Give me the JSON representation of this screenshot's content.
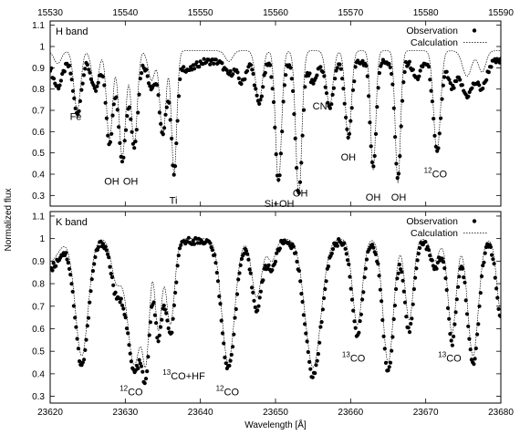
{
  "chart_data": [
    {
      "type": "scatter",
      "panel_label": "H band",
      "xlim": [
        15530,
        15590
      ],
      "ylim": [
        0.25,
        1.12
      ],
      "x_ticks": [
        15530,
        15540,
        15550,
        15560,
        15570,
        15580,
        15590
      ],
      "x_tick_position": "top",
      "y_ticks": [
        0.3,
        0.4,
        0.5,
        0.6,
        0.7,
        0.8,
        0.9,
        1.0,
        1.1
      ],
      "y_tick_labels": [
        "0.3",
        "0.4",
        "0.5",
        "0.6",
        "0.7",
        "0.8",
        "0.9",
        "1",
        "1.1"
      ],
      "grid": false,
      "legend_position": "top-right",
      "series": [
        {
          "name": "Observation",
          "style": "points",
          "color": "#000000",
          "profile": {
            "continuum": 0.93,
            "lines": [
              {
                "x": 15531.0,
                "depth": 0.12,
                "width": 0.6
              },
              {
                "x": 15533.6,
                "depth": 0.25,
                "width": 0.5
              },
              {
                "x": 15536.0,
                "depth": 0.14,
                "width": 0.5
              },
              {
                "x": 15537.9,
                "depth": 0.38,
                "width": 0.45
              },
              {
                "x": 15539.6,
                "depth": 0.46,
                "width": 0.5
              },
              {
                "x": 15541.2,
                "depth": 0.4,
                "width": 0.45
              },
              {
                "x": 15543.5,
                "depth": 0.12,
                "width": 0.5
              },
              {
                "x": 15545.0,
                "depth": 0.35,
                "width": 0.45
              },
              {
                "x": 15546.5,
                "depth": 0.52,
                "width": 0.4
              },
              {
                "x": 15548.5,
                "depth": 0.04,
                "width": 0.8
              },
              {
                "x": 15553.8,
                "depth": 0.06,
                "width": 0.6
              },
              {
                "x": 15555.5,
                "depth": 0.1,
                "width": 0.5
              },
              {
                "x": 15557.8,
                "depth": 0.2,
                "width": 0.5
              },
              {
                "x": 15560.4,
                "depth": 0.56,
                "width": 0.45
              },
              {
                "x": 15563.1,
                "depth": 0.63,
                "width": 0.45
              },
              {
                "x": 15565.0,
                "depth": 0.1,
                "width": 0.5
              },
              {
                "x": 15567.2,
                "depth": 0.22,
                "width": 0.5
              },
              {
                "x": 15569.7,
                "depth": 0.36,
                "width": 0.45
              },
              {
                "x": 15573.0,
                "depth": 0.5,
                "width": 0.4
              },
              {
                "x": 15576.3,
                "depth": 0.55,
                "width": 0.4
              },
              {
                "x": 15578.8,
                "depth": 0.08,
                "width": 0.5
              },
              {
                "x": 15581.5,
                "depth": 0.43,
                "width": 0.5
              },
              {
                "x": 15583.5,
                "depth": 0.12,
                "width": 0.5
              },
              {
                "x": 15585.5,
                "depth": 0.16,
                "width": 0.8
              },
              {
                "x": 15587.5,
                "depth": 0.12,
                "width": 0.6
              }
            ],
            "sampling": 0.16
          }
        },
        {
          "name": "Calculation",
          "style": "dotted-line",
          "color": "#000000",
          "profile": {
            "continuum": 0.98,
            "lines": [
              {
                "x": 15531.0,
                "depth": 0.06,
                "width": 0.5
              },
              {
                "x": 15533.6,
                "depth": 0.28,
                "width": 0.45
              },
              {
                "x": 15536.0,
                "depth": 0.18,
                "width": 0.45
              },
              {
                "x": 15537.9,
                "depth": 0.42,
                "width": 0.4
              },
              {
                "x": 15539.6,
                "depth": 0.5,
                "width": 0.45
              },
              {
                "x": 15541.2,
                "depth": 0.44,
                "width": 0.4
              },
              {
                "x": 15543.5,
                "depth": 0.14,
                "width": 0.45
              },
              {
                "x": 15545.0,
                "depth": 0.4,
                "width": 0.4
              },
              {
                "x": 15546.5,
                "depth": 0.58,
                "width": 0.35
              },
              {
                "x": 15553.8,
                "depth": 0.05,
                "width": 0.5
              },
              {
                "x": 15557.8,
                "depth": 0.24,
                "width": 0.45
              },
              {
                "x": 15560.4,
                "depth": 0.62,
                "width": 0.4
              },
              {
                "x": 15563.1,
                "depth": 0.68,
                "width": 0.4
              },
              {
                "x": 15567.2,
                "depth": 0.26,
                "width": 0.45
              },
              {
                "x": 15569.7,
                "depth": 0.42,
                "width": 0.4
              },
              {
                "x": 15573.0,
                "depth": 0.56,
                "width": 0.35
              },
              {
                "x": 15576.3,
                "depth": 0.62,
                "width": 0.35
              },
              {
                "x": 15581.5,
                "depth": 0.48,
                "width": 0.45
              },
              {
                "x": 15585.5,
                "depth": 0.12,
                "width": 0.6
              },
              {
                "x": 15587.5,
                "depth": 0.1,
                "width": 0.5
              }
            ],
            "sampling": 0.06
          }
        }
      ],
      "annotations": [
        {
          "text": "Fe",
          "x": 15533.4,
          "y": 0.655
        },
        {
          "text": "OH",
          "x": 15538.2,
          "y": 0.35
        },
        {
          "text": "OH",
          "x": 15540.7,
          "y": 0.35
        },
        {
          "text": "Ti",
          "x": 15546.4,
          "y": 0.26
        },
        {
          "text": "Si+OH",
          "x": 15560.5,
          "y": 0.245
        },
        {
          "text": "OH",
          "x": 15563.3,
          "y": 0.295
        },
        {
          "text": "CN",
          "x": 15565.9,
          "y": 0.705
        },
        {
          "text": "OH",
          "x": 15569.7,
          "y": 0.465
        },
        {
          "text": "OH",
          "x": 15573.0,
          "y": 0.275
        },
        {
          "text": "OH",
          "x": 15576.4,
          "y": 0.275
        },
        {
          "text": "CO",
          "sup": "12",
          "x": 15581.3,
          "y": 0.385
        }
      ]
    },
    {
      "type": "scatter",
      "panel_label": "K band",
      "xlim": [
        23620,
        23680
      ],
      "ylim": [
        0.27,
        1.12
      ],
      "x_ticks": [
        23620,
        23630,
        23640,
        23650,
        23660,
        23670,
        23680
      ],
      "x_tick_position": "bottom",
      "xlabel": "Wavelength [Å]",
      "y_ticks": [
        0.3,
        0.4,
        0.5,
        0.6,
        0.7,
        0.8,
        0.9,
        1.0,
        1.1
      ],
      "y_tick_labels": [
        "0.3",
        "0.4",
        "0.5",
        "0.6",
        "0.7",
        "0.8",
        "0.9",
        "1",
        "1.1"
      ],
      "grid": false,
      "legend_position": "top-right",
      "series": [
        {
          "name": "Observation",
          "style": "points",
          "color": "#000000",
          "profile": {
            "continuum": 0.99,
            "lines": [
              {
                "x": 23620.0,
                "depth": 0.12,
                "width": 1.2
              },
              {
                "x": 23624.2,
                "depth": 0.55,
                "width": 0.9
              },
              {
                "x": 23628.8,
                "depth": 0.22,
                "width": 0.7
              },
              {
                "x": 23631.2,
                "depth": 0.58,
                "width": 1.0
              },
              {
                "x": 23632.8,
                "depth": 0.45,
                "width": 0.5
              },
              {
                "x": 23634.4,
                "depth": 0.42,
                "width": 0.5
              },
              {
                "x": 23636.0,
                "depth": 0.42,
                "width": 0.6
              },
              {
                "x": 23643.7,
                "depth": 0.57,
                "width": 0.9
              },
              {
                "x": 23647.5,
                "depth": 0.3,
                "width": 0.7
              },
              {
                "x": 23649.5,
                "depth": 0.12,
                "width": 0.6
              },
              {
                "x": 23655.0,
                "depth": 0.6,
                "width": 1.1
              },
              {
                "x": 23660.9,
                "depth": 0.42,
                "width": 0.7
              },
              {
                "x": 23665.0,
                "depth": 0.58,
                "width": 0.75
              },
              {
                "x": 23667.8,
                "depth": 0.4,
                "width": 0.6
              },
              {
                "x": 23671.2,
                "depth": 0.12,
                "width": 0.6
              },
              {
                "x": 23673.5,
                "depth": 0.45,
                "width": 0.6
              },
              {
                "x": 23676.3,
                "depth": 0.55,
                "width": 0.75
              },
              {
                "x": 23680.0,
                "depth": 0.35,
                "width": 0.6
              }
            ],
            "sampling": 0.15
          }
        },
        {
          "name": "Calculation",
          "style": "dotted-line",
          "color": "#000000",
          "profile": {
            "continuum": 1.0,
            "lines": [
              {
                "x": 23620.0,
                "depth": 0.1,
                "width": 1.1
              },
              {
                "x": 23624.2,
                "depth": 0.52,
                "width": 0.85
              },
              {
                "x": 23628.8,
                "depth": 0.18,
                "width": 0.65
              },
              {
                "x": 23631.2,
                "depth": 0.56,
                "width": 0.95
              },
              {
                "x": 23632.8,
                "depth": 0.42,
                "width": 0.45
              },
              {
                "x": 23634.4,
                "depth": 0.4,
                "width": 0.45
              },
              {
                "x": 23636.0,
                "depth": 0.38,
                "width": 0.55
              },
              {
                "x": 23643.7,
                "depth": 0.55,
                "width": 0.85
              },
              {
                "x": 23647.5,
                "depth": 0.26,
                "width": 0.65
              },
              {
                "x": 23649.5,
                "depth": 0.1,
                "width": 0.55
              },
              {
                "x": 23655.0,
                "depth": 0.57,
                "width": 1.05
              },
              {
                "x": 23660.9,
                "depth": 0.38,
                "width": 0.65
              },
              {
                "x": 23665.0,
                "depth": 0.55,
                "width": 0.7
              },
              {
                "x": 23667.8,
                "depth": 0.36,
                "width": 0.55
              },
              {
                "x": 23671.2,
                "depth": 0.1,
                "width": 0.55
              },
              {
                "x": 23673.5,
                "depth": 0.42,
                "width": 0.55
              },
              {
                "x": 23676.3,
                "depth": 0.52,
                "width": 0.7
              },
              {
                "x": 23680.0,
                "depth": 0.32,
                "width": 0.55
              }
            ],
            "sampling": 0.06
          }
        }
      ],
      "annotations": [
        {
          "text": "CO",
          "sup": "12",
          "x": 23630.8,
          "y": 0.305
        },
        {
          "text": "CO+HF",
          "sup": "13",
          "x": 23637.8,
          "y": 0.375
        },
        {
          "text": "CO",
          "sup": "12",
          "x": 23643.6,
          "y": 0.305
        },
        {
          "text": "CO",
          "sup": "13",
          "x": 23660.4,
          "y": 0.455
        },
        {
          "text": "CO",
          "sup": "13",
          "x": 23673.2,
          "y": 0.455
        }
      ]
    }
  ],
  "shared_ylabel": "Normalized flux"
}
